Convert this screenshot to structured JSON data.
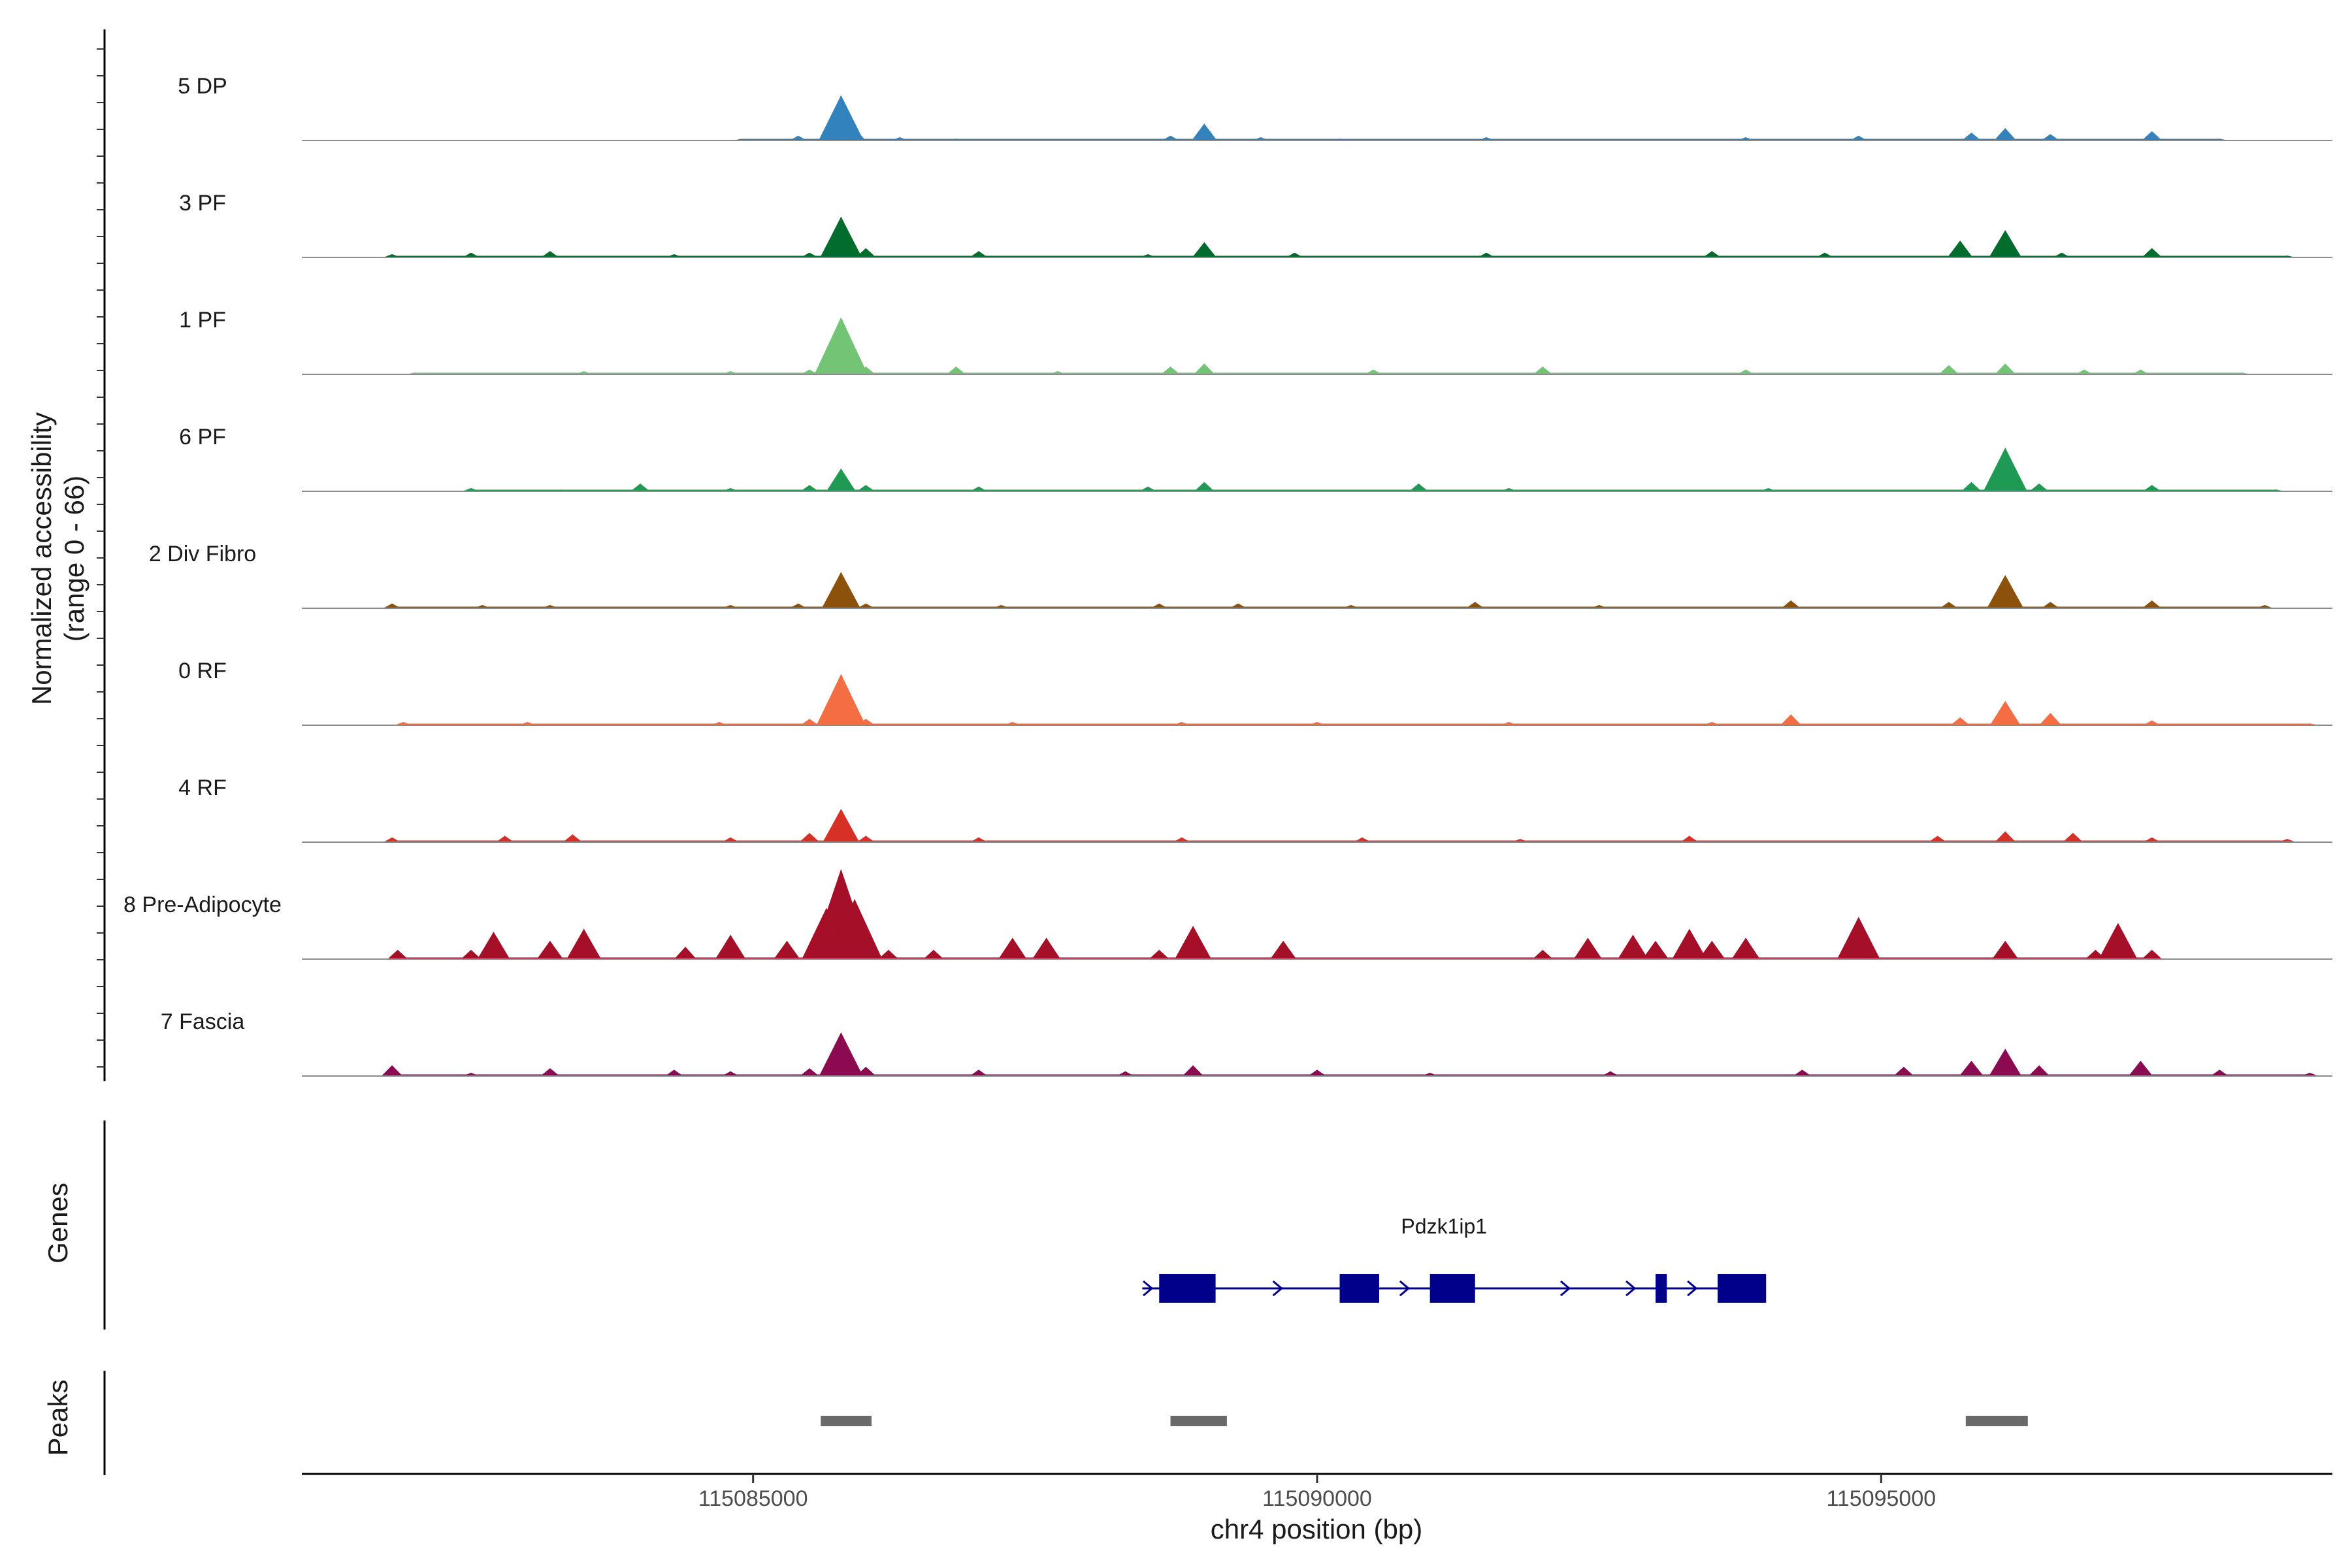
{
  "chart_data": {
    "type": "area",
    "xlabel": "chr4 position (bp)",
    "ylabel": "Normalized accessibility",
    "ylabel_range": "(range 0 - 66)",
    "ylim": [
      0,
      66
    ],
    "xlim": [
      115081000,
      115099000
    ],
    "x_ticks": [
      115085000,
      115090000,
      115095000
    ],
    "x_tick_labels": [
      "115085000",
      "115090000",
      "115095000"
    ],
    "tracks": [
      {
        "name": "5 DP",
        "color": "#3182bd",
        "points": [
          [
            115084900,
            1
          ],
          [
            115085400,
            3
          ],
          [
            115085700,
            10
          ],
          [
            115085780,
            30
          ],
          [
            115085900,
            8
          ],
          [
            115086300,
            2
          ],
          [
            115086800,
            1
          ],
          [
            115088700,
            3
          ],
          [
            115089000,
            11
          ],
          [
            115089500,
            2
          ],
          [
            115090200,
            1
          ],
          [
            115091500,
            2
          ],
          [
            115093800,
            2
          ],
          [
            115094800,
            3
          ],
          [
            115095800,
            5
          ],
          [
            115096100,
            8
          ],
          [
            115096500,
            4
          ],
          [
            115097400,
            6
          ],
          [
            115098000,
            1
          ]
        ]
      },
      {
        "name": "3 PF",
        "color": "#006d2c",
        "points": [
          [
            115081800,
            2
          ],
          [
            115082500,
            3
          ],
          [
            115083200,
            4
          ],
          [
            115084300,
            2
          ],
          [
            115085500,
            3
          ],
          [
            115085780,
            27
          ],
          [
            115086000,
            6
          ],
          [
            115087000,
            4
          ],
          [
            115088500,
            2
          ],
          [
            115089000,
            10
          ],
          [
            115089800,
            3
          ],
          [
            115091500,
            3
          ],
          [
            115093500,
            4
          ],
          [
            115094500,
            3
          ],
          [
            115095700,
            11
          ],
          [
            115096100,
            18
          ],
          [
            115096600,
            3
          ],
          [
            115097400,
            6
          ],
          [
            115098600,
            1
          ]
        ]
      },
      {
        "name": "1 PF",
        "color": "#74c476",
        "points": [
          [
            115082000,
            1
          ],
          [
            115083500,
            2
          ],
          [
            115084800,
            2
          ],
          [
            115085500,
            3
          ],
          [
            115085780,
            38
          ],
          [
            115086000,
            5
          ],
          [
            115086800,
            5
          ],
          [
            115087700,
            2
          ],
          [
            115088700,
            5
          ],
          [
            115089000,
            7
          ],
          [
            115090500,
            3
          ],
          [
            115092000,
            5
          ],
          [
            115093800,
            3
          ],
          [
            115095600,
            6
          ],
          [
            115096100,
            7
          ],
          [
            115096800,
            3
          ],
          [
            115097300,
            3
          ],
          [
            115098200,
            1
          ]
        ]
      },
      {
        "name": "6 PF",
        "color": "#1f9a54",
        "points": [
          [
            115082500,
            2
          ],
          [
            115083300,
            1
          ],
          [
            115084000,
            5
          ],
          [
            115084800,
            2
          ],
          [
            115085500,
            4
          ],
          [
            115085780,
            15
          ],
          [
            115086000,
            4
          ],
          [
            115087000,
            3
          ],
          [
            115088500,
            3
          ],
          [
            115089000,
            6
          ],
          [
            115090900,
            5
          ],
          [
            115091700,
            2
          ],
          [
            115094000,
            2
          ],
          [
            115095800,
            6
          ],
          [
            115096100,
            29
          ],
          [
            115096400,
            5
          ],
          [
            115097400,
            4
          ],
          [
            115098500,
            1
          ]
        ]
      },
      {
        "name": "2 Div Fibro",
        "color": "#8c510a",
        "points": [
          [
            115081800,
            3
          ],
          [
            115082600,
            2
          ],
          [
            115083200,
            2
          ],
          [
            115084800,
            2
          ],
          [
            115085400,
            3
          ],
          [
            115085780,
            24
          ],
          [
            115086000,
            3
          ],
          [
            115087200,
            2
          ],
          [
            115088600,
            3
          ],
          [
            115089300,
            3
          ],
          [
            115090300,
            2
          ],
          [
            115091400,
            4
          ],
          [
            115092500,
            2
          ],
          [
            115094200,
            5
          ],
          [
            115095600,
            4
          ],
          [
            115096100,
            22
          ],
          [
            115096500,
            4
          ],
          [
            115097400,
            5
          ],
          [
            115098400,
            2
          ]
        ]
      },
      {
        "name": "0 RF",
        "color": "#f46d43",
        "points": [
          [
            115081900,
            2
          ],
          [
            115083000,
            2
          ],
          [
            115084700,
            2
          ],
          [
            115085500,
            4
          ],
          [
            115085780,
            34
          ],
          [
            115086000,
            4
          ],
          [
            115087300,
            2
          ],
          [
            115088800,
            2
          ],
          [
            115090000,
            2
          ],
          [
            115091700,
            2
          ],
          [
            115093500,
            2
          ],
          [
            115094200,
            7
          ],
          [
            115095700,
            5
          ],
          [
            115096100,
            16
          ],
          [
            115096500,
            8
          ],
          [
            115097400,
            3
          ],
          [
            115098800,
            1
          ]
        ]
      },
      {
        "name": "4 RF",
        "color": "#d73027",
        "points": [
          [
            115081800,
            3
          ],
          [
            115082800,
            4
          ],
          [
            115083400,
            5
          ],
          [
            115084800,
            3
          ],
          [
            115085500,
            6
          ],
          [
            115085780,
            22
          ],
          [
            115086000,
            4
          ],
          [
            115087000,
            3
          ],
          [
            115088800,
            3
          ],
          [
            115090400,
            3
          ],
          [
            115091800,
            2
          ],
          [
            115093300,
            4
          ],
          [
            115095500,
            4
          ],
          [
            115096100,
            7
          ],
          [
            115096700,
            6
          ],
          [
            115097400,
            3
          ],
          [
            115098600,
            2
          ]
        ]
      },
      {
        "name": "8 Pre-Adipocyte",
        "color": "#a50f27",
        "points": [
          [
            115081850,
            6
          ],
          [
            115082500,
            6
          ],
          [
            115082700,
            18
          ],
          [
            115083200,
            12
          ],
          [
            115083500,
            20
          ],
          [
            115084400,
            8
          ],
          [
            115084800,
            16
          ],
          [
            115085300,
            12
          ],
          [
            115085650,
            34
          ],
          [
            115085780,
            60
          ],
          [
            115085900,
            40
          ],
          [
            115086200,
            6
          ],
          [
            115086600,
            6
          ],
          [
            115087300,
            14
          ],
          [
            115087600,
            14
          ],
          [
            115088600,
            6
          ],
          [
            115088900,
            22
          ],
          [
            115089700,
            12
          ],
          [
            115092000,
            6
          ],
          [
            115092400,
            14
          ],
          [
            115092800,
            16
          ],
          [
            115093000,
            12
          ],
          [
            115093300,
            20
          ],
          [
            115093500,
            12
          ],
          [
            115093800,
            14
          ],
          [
            115094800,
            28
          ],
          [
            115096100,
            12
          ],
          [
            115096900,
            6
          ],
          [
            115097100,
            24
          ],
          [
            115097400,
            6
          ]
        ]
      },
      {
        "name": "7 Fascia",
        "color": "#8b0a50",
        "points": [
          [
            115081800,
            7
          ],
          [
            115082500,
            2
          ],
          [
            115083200,
            5
          ],
          [
            115084300,
            4
          ],
          [
            115084800,
            3
          ],
          [
            115085500,
            5
          ],
          [
            115085780,
            29
          ],
          [
            115086000,
            6
          ],
          [
            115087000,
            4
          ],
          [
            115088300,
            3
          ],
          [
            115088900,
            7
          ],
          [
            115090000,
            4
          ],
          [
            115091000,
            2
          ],
          [
            115092600,
            3
          ],
          [
            115094300,
            4
          ],
          [
            115095200,
            6
          ],
          [
            115095800,
            10
          ],
          [
            115096100,
            18
          ],
          [
            115096400,
            7
          ],
          [
            115097300,
            10
          ],
          [
            115098000,
            4
          ],
          [
            115098800,
            2
          ]
        ]
      }
    ],
    "genes": [
      {
        "name": "Pdzk1ip1",
        "color": "#00008b",
        "strand": "+",
        "start": 115088450,
        "end": 115093800,
        "exons": [
          [
            115088600,
            115089100
          ],
          [
            115090200,
            115090550
          ],
          [
            115091000,
            115091400
          ],
          [
            115093000,
            115093100
          ],
          [
            115093550,
            115093980
          ]
        ]
      }
    ],
    "genes_label": "Genes",
    "peaks_label": "Peaks",
    "peaks_color": "#696969",
    "peaks": [
      [
        115085600,
        115086050
      ],
      [
        115088700,
        115089200
      ],
      [
        115095750,
        115096300
      ]
    ]
  }
}
